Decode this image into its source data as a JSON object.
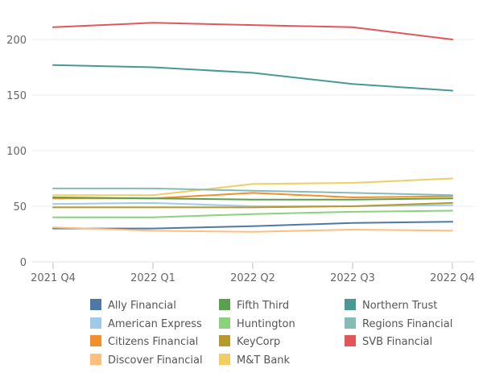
{
  "chart_data": {
    "type": "line",
    "title": "",
    "xlabel": "",
    "ylabel": "",
    "categories": [
      "2021 Q4",
      "2022 Q1",
      "2022 Q2",
      "2022 Q3",
      "2022 Q4"
    ],
    "ylim": [
      0,
      220
    ],
    "yticks": [
      0,
      50,
      100,
      150,
      200
    ],
    "grid": true,
    "legend_position": "bottom",
    "series": [
      {
        "name": "Ally Financial",
        "color": "#4e79a7",
        "values": [
          30,
          30,
          32,
          35,
          36
        ]
      },
      {
        "name": "American Express",
        "color": "#a0cbe8",
        "values": [
          52,
          53,
          50,
          50,
          51
        ]
      },
      {
        "name": "Citizens Financial",
        "color": "#f28e2b",
        "values": [
          57,
          57,
          62,
          58,
          59
        ]
      },
      {
        "name": "Discover Financial",
        "color": "#ffbe7d",
        "values": [
          31,
          28,
          27,
          29,
          28
        ]
      },
      {
        "name": "Fifth Third",
        "color": "#59a14f",
        "values": [
          58,
          57,
          56,
          56,
          57
        ]
      },
      {
        "name": "Huntington",
        "color": "#8cd17d",
        "values": [
          40,
          40,
          43,
          45,
          46
        ]
      },
      {
        "name": "KeyCorp",
        "color": "#b6992d",
        "values": [
          49,
          49,
          49,
          50,
          53
        ]
      },
      {
        "name": "M&T Bank",
        "color": "#f1ce63",
        "values": [
          60,
          60,
          70,
          71,
          75
        ]
      },
      {
        "name": "Northern Trust",
        "color": "#499894",
        "values": [
          177,
          175,
          170,
          160,
          154
        ]
      },
      {
        "name": "Regions Financial",
        "color": "#86bcb6",
        "values": [
          66,
          66,
          64,
          62,
          60
        ]
      },
      {
        "name": "SVB Financial",
        "color": "#e15759",
        "values": [
          211,
          215,
          213,
          211,
          200
        ]
      }
    ]
  }
}
